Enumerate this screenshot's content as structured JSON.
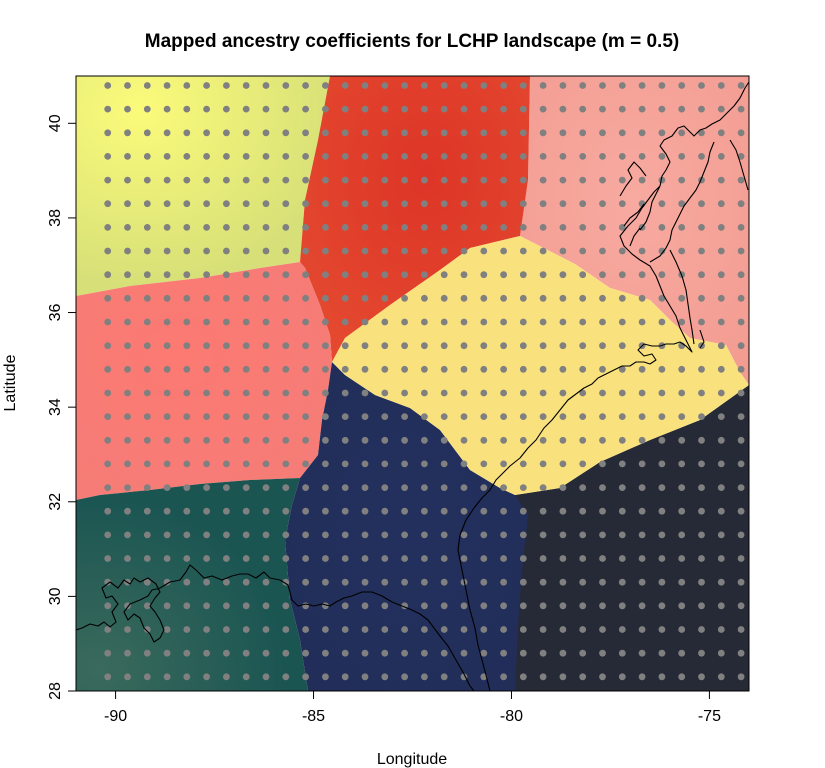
{
  "chart_data": {
    "type": "map",
    "title": "Mapped ancestry coefficients for LCHP landscape (m = 0.5)",
    "xlabel": "Longitude",
    "ylabel": "Latitude",
    "xlim": [
      -91,
      -74
    ],
    "ylim": [
      28,
      41
    ],
    "x_ticks": [
      -90,
      -85,
      -80,
      -75
    ],
    "y_ticks": [
      28,
      30,
      32,
      34,
      36,
      38,
      40
    ],
    "x_tick_labels": [
      "-90",
      "-85",
      "-80",
      "-75"
    ],
    "y_tick_labels": [
      "28",
      "30",
      "32",
      "34",
      "36",
      "38",
      "40"
    ],
    "grid_points": {
      "lon_start": -90.2,
      "lon_step": 0.5,
      "lon_count": 34,
      "lat_start": 28.3,
      "lat_step": 0.5,
      "lat_count": 26,
      "color": "#808080"
    },
    "clusters": [
      {
        "id": 1,
        "color": "#e8ec72"
      },
      {
        "id": 2,
        "color": "#e23e2c"
      },
      {
        "id": 3,
        "color": "#f6a699"
      },
      {
        "id": 4,
        "color": "#fb7a74"
      },
      {
        "id": 5,
        "color": "#f9e27e"
      },
      {
        "id": 6,
        "color": "#1f5a55"
      },
      {
        "id": 7,
        "color": "#23305e"
      },
      {
        "id": 8,
        "color": "#262a36"
      }
    ]
  }
}
